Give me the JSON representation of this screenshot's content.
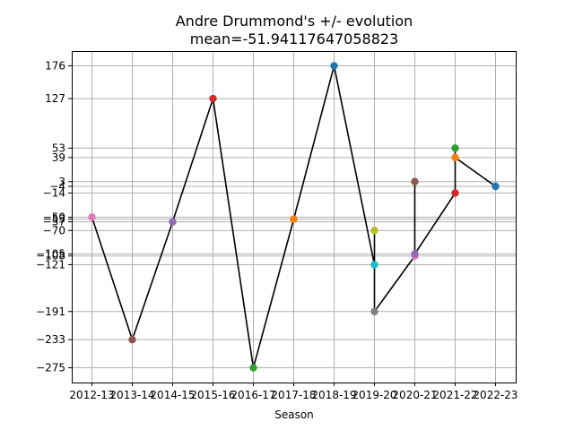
{
  "chart_data": {
    "type": "line",
    "title": "Andre Drummond's +/- evolution",
    "subtitle": "mean=-51.94117647058823",
    "xlabel": "Season",
    "ylabel": "",
    "categories": [
      "2012-13",
      "2013-14",
      "2014-15",
      "2015-16",
      "2016-17",
      "2017-18",
      "2018-19",
      "2019-20",
      "2020-21",
      "2021-22",
      "2022-23"
    ],
    "ytick_labels": [
      "176",
      "127",
      "53",
      "39",
      "3",
      "−4",
      "−14",
      "−50",
      "−53",
      "−57",
      "−70",
      "−105",
      "−108",
      "−121",
      "−191",
      "−233",
      "−275"
    ],
    "yticks": [
      176,
      127,
      53,
      39,
      3,
      -4,
      -14,
      -50,
      -53,
      -57,
      -70,
      -105,
      -108,
      -121,
      -191,
      -233,
      -275
    ],
    "ylim": [
      -297,
      198
    ],
    "grid": true,
    "points": [
      {
        "season": "2012-13",
        "value": -50,
        "color": "#e377c2"
      },
      {
        "season": "2013-14",
        "value": -233,
        "color": "#8c564b"
      },
      {
        "season": "2014-15",
        "value": -57,
        "color": "#9467bd"
      },
      {
        "season": "2015-16",
        "value": 127,
        "color": "#d62728"
      },
      {
        "season": "2016-17",
        "value": -275,
        "color": "#2ca02c"
      },
      {
        "season": "2017-18",
        "value": -53,
        "color": "#ff7f0e"
      },
      {
        "season": "2018-19",
        "value": 176,
        "color": "#1f77b4"
      },
      {
        "season": "2019-20",
        "value": -121,
        "color": "#17becf"
      },
      {
        "season": "2019-20",
        "value": -70,
        "color": "#bcbd22"
      },
      {
        "season": "2019-20",
        "value": -191,
        "color": "#7f7f7f"
      },
      {
        "season": "2020-21",
        "value": -108,
        "color": "#e377c2"
      },
      {
        "season": "2020-21",
        "value": 3,
        "color": "#8c564b"
      },
      {
        "season": "2020-21",
        "value": -105,
        "color": "#9467bd"
      },
      {
        "season": "2021-22",
        "value": -14,
        "color": "#d62728"
      },
      {
        "season": "2021-22",
        "value": 53,
        "color": "#2ca02c"
      },
      {
        "season": "2021-22",
        "value": 39,
        "color": "#ff7f0e"
      },
      {
        "season": "2022-23",
        "value": -4,
        "color": "#1f77b4"
      }
    ],
    "line_color": "#000000"
  }
}
